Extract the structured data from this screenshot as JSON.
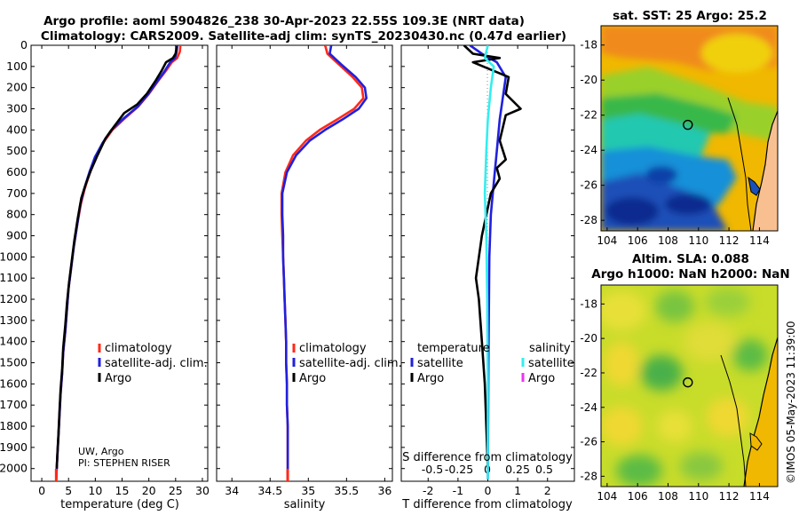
{
  "figure": {
    "title_line1": "Argo profile: aoml 5904826_238 30-Apr-2023 22.55S 109.3E (NRT data)",
    "title_line2": "Climatology: CARS2009. Satellite-adj clim: synTS_20230430.nc (0.47d earlier)",
    "credit_line1": "UW, Argo",
    "credit_line2": "PI: STEPHEN RISER",
    "timestamp": "©IMOS 05-May-2023 11:39:00"
  },
  "colors": {
    "climatology": "#ff2a1a",
    "satellite_adj": "#2020dd",
    "argo": "#000000",
    "satellite_salinity": "#33eeee",
    "argo_salinity": "#ee33ee"
  },
  "legends": {
    "temperature": [
      "climatology",
      "satellite-adj. clim.",
      "Argo"
    ],
    "salinity": [
      "climatology",
      "satellite-adj. clim.",
      "Argo"
    ],
    "diff_temperature_title": "temperature",
    "diff_temperature": [
      "satellite",
      "Argo"
    ],
    "diff_salinity_title": "salinity",
    "diff_salinity": [
      "satellite",
      "Argo"
    ]
  },
  "depth_ticks": [
    "0",
    "100",
    "200",
    "300",
    "400",
    "500",
    "600",
    "700",
    "800",
    "900",
    "1000",
    "1100",
    "1200",
    "1300",
    "1400",
    "1500",
    "1600",
    "1700",
    "1800",
    "1900",
    "2000"
  ],
  "chart_data": [
    {
      "type": "line",
      "xlabel": "temperature (deg C)",
      "ylabel": "",
      "xlim": [
        -2,
        31
      ],
      "ylim": [
        2060,
        0
      ],
      "x_ticks": [
        "0",
        "5",
        "10",
        "15",
        "20",
        "25",
        "30"
      ],
      "series": [
        {
          "name": "climatology",
          "points": [
            [
              25.9,
              0
            ],
            [
              25.8,
              30
            ],
            [
              25.3,
              60
            ],
            [
              24.3,
              80
            ],
            [
              23.2,
              120
            ],
            [
              21.7,
              170
            ],
            [
              20.0,
              230
            ],
            [
              18.0,
              290
            ],
            [
              15.3,
              350
            ],
            [
              13.2,
              400
            ],
            [
              11.5,
              460
            ],
            [
              10.0,
              530
            ],
            [
              9.0,
              600
            ],
            [
              8.0,
              680
            ],
            [
              7.3,
              750
            ],
            [
              6.6,
              850
            ],
            [
              6.0,
              950
            ],
            [
              5.5,
              1050
            ],
            [
              5.0,
              1150
            ],
            [
              4.7,
              1250
            ],
            [
              4.4,
              1350
            ],
            [
              4.0,
              1450
            ],
            [
              3.8,
              1550
            ],
            [
              3.5,
              1650
            ],
            [
              3.3,
              1750
            ],
            [
              3.1,
              1850
            ],
            [
              2.9,
              1950
            ],
            [
              2.8,
              2000
            ],
            [
              2.7,
              2050
            ]
          ]
        },
        {
          "name": "satellite-adj. clim.",
          "points": [
            [
              25.3,
              0
            ],
            [
              25.2,
              30
            ],
            [
              24.9,
              60
            ],
            [
              24.0,
              80
            ],
            [
              23.0,
              120
            ],
            [
              21.6,
              170
            ],
            [
              19.9,
              230
            ],
            [
              17.9,
              290
            ],
            [
              15.1,
              350
            ],
            [
              13.0,
              400
            ],
            [
              11.4,
              460
            ],
            [
              9.9,
              530
            ],
            [
              8.9,
              600
            ],
            [
              7.9,
              680
            ],
            [
              7.2,
              750
            ],
            [
              6.6,
              850
            ],
            [
              6.0,
              950
            ],
            [
              5.5,
              1050
            ],
            [
              5.0,
              1150
            ],
            [
              4.7,
              1250
            ],
            [
              4.4,
              1350
            ],
            [
              4.0,
              1450
            ],
            [
              3.8,
              1550
            ],
            [
              3.5,
              1650
            ],
            [
              3.3,
              1750
            ],
            [
              3.1,
              1850
            ],
            [
              2.9,
              1950
            ],
            [
              2.8,
              2000
            ],
            [
              2.7,
              2050
            ]
          ]
        },
        {
          "name": "Argo",
          "points": [
            [
              25.2,
              5
            ],
            [
              25.0,
              40
            ],
            [
              24.5,
              60
            ],
            [
              23.2,
              80
            ],
            [
              22.4,
              120
            ],
            [
              21.2,
              170
            ],
            [
              19.6,
              230
            ],
            [
              17.8,
              280
            ],
            [
              15.4,
              320
            ],
            [
              13.6,
              380
            ],
            [
              11.9,
              440
            ],
            [
              10.4,
              520
            ],
            [
              9.2,
              590
            ],
            [
              8.3,
              650
            ],
            [
              7.4,
              720
            ],
            [
              6.7,
              820
            ],
            [
              6.1,
              920
            ],
            [
              5.6,
              1020
            ],
            [
              5.1,
              1120
            ],
            [
              4.7,
              1220
            ],
            [
              4.4,
              1320
            ],
            [
              4.0,
              1430
            ],
            [
              3.8,
              1530
            ],
            [
              3.5,
              1630
            ],
            [
              3.3,
              1730
            ],
            [
              3.1,
              1840
            ],
            [
              2.9,
              1940
            ],
            [
              2.8,
              2000
            ]
          ]
        }
      ]
    },
    {
      "type": "line",
      "xlabel": "salinity",
      "ylabel": "",
      "xlim": [
        33.8,
        36.1
      ],
      "ylim": [
        2060,
        0
      ],
      "x_ticks": [
        "34",
        "34.5",
        "35",
        "35.5",
        "36"
      ],
      "series": [
        {
          "name": "climatology",
          "points": [
            [
              35.22,
              0
            ],
            [
              35.25,
              40
            ],
            [
              35.4,
              90
            ],
            [
              35.58,
              150
            ],
            [
              35.7,
              200
            ],
            [
              35.72,
              250
            ],
            [
              35.6,
              300
            ],
            [
              35.38,
              350
            ],
            [
              35.15,
              400
            ],
            [
              34.97,
              450
            ],
            [
              34.8,
              520
            ],
            [
              34.7,
              600
            ],
            [
              34.65,
              700
            ],
            [
              34.65,
              800
            ],
            [
              34.66,
              900
            ],
            [
              34.67,
              1000
            ],
            [
              34.68,
              1100
            ],
            [
              34.69,
              1200
            ],
            [
              34.7,
              1300
            ],
            [
              34.71,
              1400
            ],
            [
              34.71,
              1500
            ],
            [
              34.72,
              1600
            ],
            [
              34.72,
              1700
            ],
            [
              34.73,
              1800
            ],
            [
              34.73,
              1900
            ],
            [
              34.73,
              2000
            ],
            [
              34.73,
              2050
            ]
          ]
        },
        {
          "name": "satellite-adj. clim.",
          "points": [
            [
              35.3,
              0
            ],
            [
              35.28,
              40
            ],
            [
              35.43,
              90
            ],
            [
              35.62,
              150
            ],
            [
              35.74,
              200
            ],
            [
              35.76,
              250
            ],
            [
              35.66,
              300
            ],
            [
              35.45,
              350
            ],
            [
              35.22,
              400
            ],
            [
              35.02,
              450
            ],
            [
              34.84,
              520
            ],
            [
              34.72,
              600
            ],
            [
              34.66,
              700
            ],
            [
              34.66,
              800
            ],
            [
              34.67,
              900
            ],
            [
              34.67,
              1000
            ],
            [
              34.68,
              1100
            ],
            [
              34.69,
              1200
            ],
            [
              34.7,
              1300
            ],
            [
              34.71,
              1400
            ],
            [
              34.71,
              1500
            ],
            [
              34.72,
              1600
            ],
            [
              34.72,
              1700
            ],
            [
              34.73,
              1800
            ],
            [
              34.73,
              1900
            ],
            [
              34.73,
              2000
            ],
            [
              34.73,
              2050
            ]
          ]
        }
      ]
    },
    {
      "type": "line",
      "xlabel": "T difference from climatology",
      "x2label": "S difference from climatology",
      "xlim": [
        -2.9,
        2.9
      ],
      "ylim": [
        2060,
        0
      ],
      "x_ticks": [
        "-2",
        "-1",
        "0",
        "1",
        "2"
      ],
      "x2_ticks": [
        "-0.5",
        "-0.25",
        "0",
        "0.25",
        "0.5"
      ],
      "series": [
        {
          "name": "temperature satellite",
          "points": [
            [
              -0.6,
              0
            ],
            [
              -0.2,
              40
            ],
            [
              0.3,
              80
            ],
            [
              0.6,
              150
            ],
            [
              0.5,
              250
            ],
            [
              0.4,
              350
            ],
            [
              0.3,
              500
            ],
            [
              0.2,
              650
            ],
            [
              0.1,
              800
            ],
            [
              0.05,
              1000
            ],
            [
              0.02,
              1500
            ],
            [
              0.0,
              2050
            ]
          ]
        },
        {
          "name": "temperature Argo",
          "points": [
            [
              -0.8,
              0
            ],
            [
              -0.5,
              40
            ],
            [
              0.4,
              60
            ],
            [
              -0.5,
              80
            ],
            [
              0.7,
              150
            ],
            [
              0.6,
              230
            ],
            [
              1.1,
              300
            ],
            [
              0.6,
              330
            ],
            [
              0.4,
              450
            ],
            [
              0.6,
              540
            ],
            [
              0.3,
              580
            ],
            [
              0.4,
              630
            ],
            [
              0.1,
              700
            ],
            [
              -0.2,
              900
            ],
            [
              -0.4,
              1100
            ],
            [
              -0.3,
              1200
            ],
            [
              -0.2,
              1400
            ],
            [
              -0.1,
              1600
            ],
            [
              0.0,
              2000
            ]
          ]
        },
        {
          "name": "salinity satellite",
          "points": [
            [
              0.0,
              0
            ],
            [
              -0.1,
              60
            ],
            [
              0.2,
              100
            ],
            [
              0.1,
              200
            ],
            [
              0.0,
              350
            ],
            [
              -0.05,
              500
            ],
            [
              -0.1,
              700
            ],
            [
              -0.05,
              900
            ],
            [
              -0.02,
              1200
            ],
            [
              0.0,
              1600
            ],
            [
              0.0,
              2050
            ]
          ]
        }
      ]
    }
  ],
  "maps": [
    {
      "title": "sat. SST: 25 Argo: 25.2",
      "lon_ticks": [
        "104",
        "106",
        "108",
        "110",
        "112",
        "114"
      ],
      "lat_ticks": [
        "-18",
        "-20",
        "-22",
        "-24",
        "-26",
        "-28"
      ],
      "marker": {
        "lon": 109.3,
        "lat": -22.55
      }
    },
    {
      "title_line1": "Altim. SLA: 0.088",
      "title_line2": "Argo h1000: NaN h2000: NaN",
      "lon_ticks": [
        "104",
        "106",
        "108",
        "110",
        "112",
        "114"
      ],
      "lat_ticks": [
        "-18",
        "-20",
        "-22",
        "-24",
        "-26",
        "-28"
      ],
      "marker": {
        "lon": 109.3,
        "lat": -22.55
      }
    }
  ]
}
